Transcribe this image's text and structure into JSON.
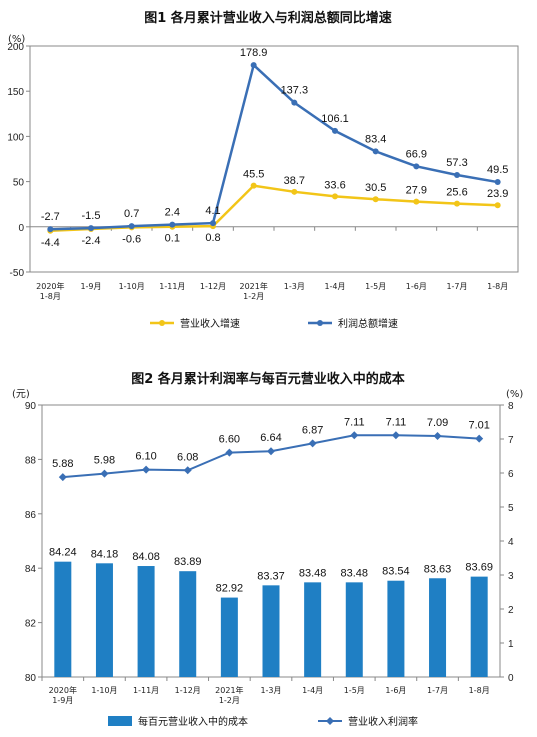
{
  "chart_data": [
    {
      "type": "line",
      "title": "图1 各月累计营业收入与利润总额同比增速",
      "y_unit": "(%)",
      "ylim": [
        -50,
        200
      ],
      "yticks": [
        "-50",
        "0",
        "50",
        "100",
        "150",
        "200"
      ],
      "categories": [
        "2020年\n1-8月",
        "1-9月",
        "1-10月",
        "1-11月",
        "1-12月",
        "2021年\n1-2月",
        "1-3月",
        "1-4月",
        "1-5月",
        "1-6月",
        "1-7月",
        "1-8月"
      ],
      "series": [
        {
          "name": "营业收入增速",
          "color": "#f2c518",
          "values": [
            -4.4,
            -2.4,
            -0.6,
            0.1,
            0.8,
            45.5,
            38.7,
            33.6,
            30.5,
            27.9,
            25.6,
            23.9
          ],
          "labels": [
            "-4.4",
            "-2.4",
            "-0.6",
            "0.1",
            "0.8",
            "45.5",
            "38.7",
            "33.6",
            "30.5",
            "27.9",
            "25.6",
            "23.9"
          ]
        },
        {
          "name": "利润总额增速",
          "color": "#3a6fb5",
          "values": [
            -2.7,
            -1.5,
            0.7,
            2.4,
            4.1,
            178.9,
            137.3,
            106.1,
            83.4,
            66.9,
            57.3,
            49.5
          ],
          "labels": [
            "-2.7",
            "-1.5",
            "0.7",
            "2.4",
            "4.1",
            "178.9",
            "137.3",
            "106.1",
            "83.4",
            "66.9",
            "57.3",
            "49.5"
          ]
        }
      ],
      "legend_position": "bottom"
    },
    {
      "type": "bar",
      "title": "图2 各月累计利润率与每百元营业收入中的成本",
      "y_unit_left": "(元)",
      "y_unit_right": "(%)",
      "ylim_left": [
        80,
        90
      ],
      "ylim_right": [
        0,
        8
      ],
      "yticks_left": [
        "80",
        "82",
        "84",
        "86",
        "88",
        "90"
      ],
      "yticks_right": [
        "0",
        "1",
        "2",
        "3",
        "4",
        "5",
        "6",
        "7",
        "8"
      ],
      "categories": [
        "2020年\n1-9月",
        "1-10月",
        "1-11月",
        "1-12月",
        "2021年\n1-2月",
        "1-3月",
        "1-4月",
        "1-5月",
        "1-6月",
        "1-7月",
        "1-8月"
      ],
      "series": [
        {
          "name": "每百元营业收入中的成本",
          "kind": "bar",
          "axis": "left",
          "color": "#1f7fc4",
          "values": [
            84.24,
            84.18,
            84.08,
            83.89,
            82.92,
            83.37,
            83.48,
            83.48,
            83.54,
            83.63,
            83.69
          ],
          "labels": [
            "84.24",
            "84.18",
            "84.08",
            "83.89",
            "82.92",
            "83.37",
            "83.48",
            "83.48",
            "83.54",
            "83.63",
            "83.69"
          ]
        },
        {
          "name": "营业收入利润率",
          "kind": "line",
          "axis": "right",
          "color": "#3a6fb5",
          "values": [
            5.88,
            5.98,
            6.1,
            6.08,
            6.6,
            6.64,
            6.87,
            7.11,
            7.11,
            7.09,
            7.01
          ],
          "labels": [
            "5.88",
            "5.98",
            "6.10",
            "6.08",
            "6.60",
            "6.64",
            "6.87",
            "7.11",
            "7.11",
            "7.09",
            "7.01"
          ]
        }
      ],
      "legend_position": "bottom"
    }
  ]
}
